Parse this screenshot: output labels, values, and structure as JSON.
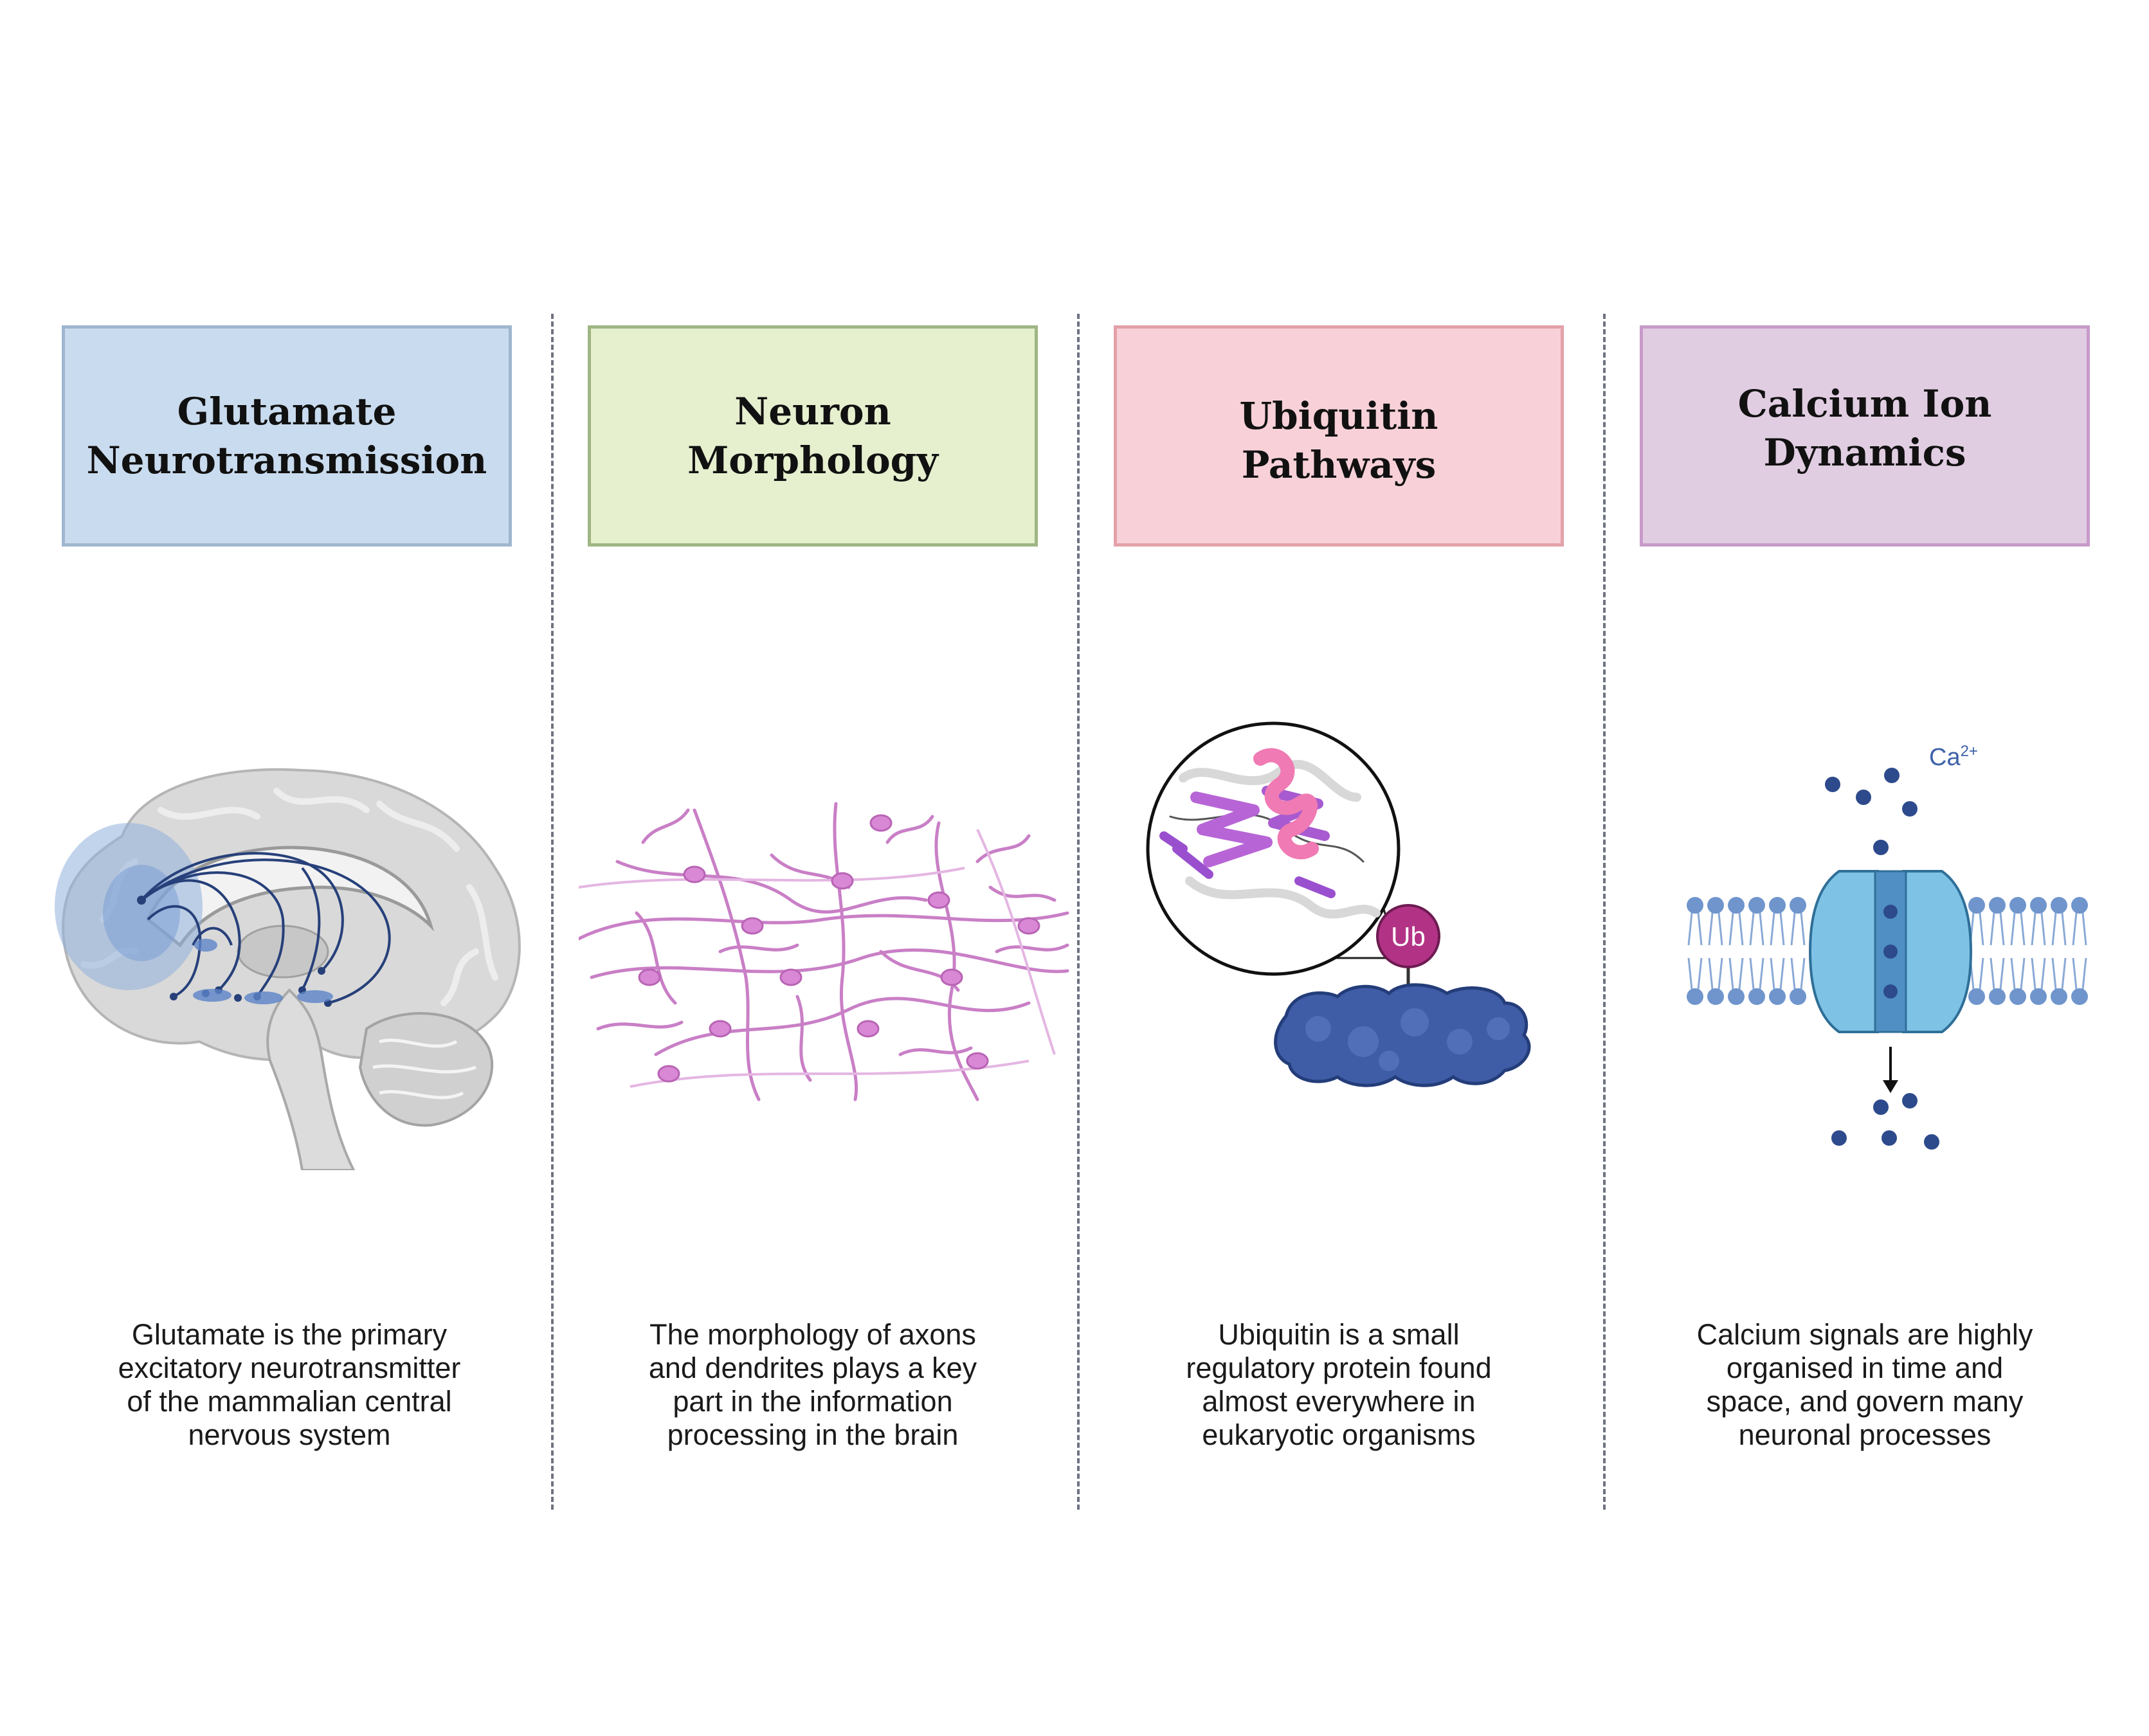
{
  "panels": [
    {
      "title_line1": "Glutamate",
      "title_line2": "Neurotransmission",
      "description": [
        "Glutamate is the primary",
        "excitatory neurotransmitter",
        "of the mammalian central",
        "nervous system"
      ],
      "box_fill": "#c9dbee",
      "box_border": "#9fb6cf",
      "illustration": "brain-sagittal-illustration"
    },
    {
      "title_line1": "Neuron",
      "title_line2": "Morphology",
      "description": [
        "The morphology of axons",
        "and dendrites plays a key",
        "part in the information",
        "processing in the brain"
      ],
      "box_fill": "#e6f0cf",
      "box_border": "#9fb683",
      "illustration": "neuron-network-illustration"
    },
    {
      "title_line1": "Ubiquitin",
      "title_line2": "Pathways",
      "description": [
        "Ubiquitin is a small",
        "regulatory protein found",
        "almost everywhere in",
        "eukaryotic organisms"
      ],
      "box_fill": "#f8d1d8",
      "box_border": "#e3a1a8",
      "illustration": "ubiquitin-protein-illustration",
      "ub_label": "Ub"
    },
    {
      "title_line1": "Calcium Ion",
      "title_line2": "Dynamics",
      "description": [
        "Calcium signals are highly",
        "organised in time and",
        "space, and govern many",
        "neuronal processes"
      ],
      "box_fill": "#e1cde2",
      "box_border": "#c79ac9",
      "illustration": "calcium-channel-illustration",
      "ion_label": "Ca",
      "ion_charge": "2+"
    }
  ]
}
